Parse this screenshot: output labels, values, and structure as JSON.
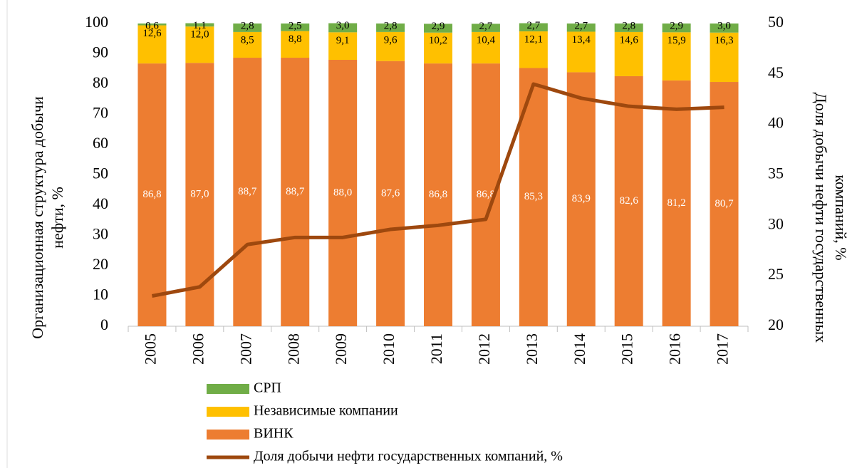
{
  "chart_data": {
    "type": "bar",
    "stacked": true,
    "categories": [
      "2005",
      "2006",
      "2007",
      "2008",
      "2009",
      "2010",
      "2011",
      "2012",
      "2013",
      "2014",
      "2015",
      "2016",
      "2017"
    ],
    "series": [
      {
        "name": "ВИНК",
        "color": "#ed7d31",
        "values": [
          86.8,
          87.0,
          88.7,
          88.7,
          88.0,
          87.6,
          86.8,
          86.8,
          85.3,
          83.9,
          82.6,
          81.2,
          80.7
        ],
        "value_labels": [
          "86,8",
          "87,0",
          "88,7",
          "88,7",
          "88,0",
          "87,6",
          "86,8",
          "86,8",
          "85,3",
          "83,9",
          "82,6",
          "81,2",
          "80,7"
        ]
      },
      {
        "name": "Независимые компании",
        "color": "#ffc000",
        "values": [
          12.6,
          12.0,
          8.5,
          8.8,
          9.1,
          9.6,
          10.2,
          10.4,
          12.1,
          13.4,
          14.6,
          15.9,
          16.3
        ],
        "value_labels": [
          "12,6",
          "12,0",
          "8,5",
          "8,8",
          "9,1",
          "9,6",
          "10,2",
          "10,4",
          "12,1",
          "13,4",
          "14,6",
          "15,9",
          "16,3"
        ]
      },
      {
        "name": "СРП",
        "color": "#70ad47",
        "values": [
          0.6,
          1.1,
          2.8,
          2.5,
          3.0,
          2.8,
          2.9,
          2.7,
          2.7,
          2.7,
          2.8,
          2.9,
          3.0
        ],
        "value_labels": [
          "0,6",
          "1,1",
          "2,8",
          "2,5",
          "3,0",
          "2,8",
          "2,9",
          "2,7",
          "2,7",
          "2,7",
          "2,8",
          "2,9",
          "3,0"
        ]
      },
      {
        "name": "Доля добычи нефти государственных компаний, %",
        "color": "#9e480e",
        "type": "line",
        "axis": "y2",
        "values": [
          23.0,
          23.9,
          28.1,
          28.8,
          28.8,
          29.6,
          30.0,
          30.6,
          44.0,
          42.6,
          41.8,
          41.5,
          41.7
        ]
      }
    ],
    "ylabel": [
      "Организационная структура добычи",
      "нефти, %"
    ],
    "y2label": [
      "Доля добычи нефти государственных",
      "компаний, %"
    ],
    "ylim": [
      0,
      100
    ],
    "yticks": [
      0,
      10,
      20,
      30,
      40,
      50,
      60,
      70,
      80,
      90,
      100
    ],
    "y2lim": [
      20,
      50
    ],
    "y2ticks": [
      20,
      25,
      30,
      35,
      40,
      45,
      50
    ],
    "legend": "bottom"
  }
}
